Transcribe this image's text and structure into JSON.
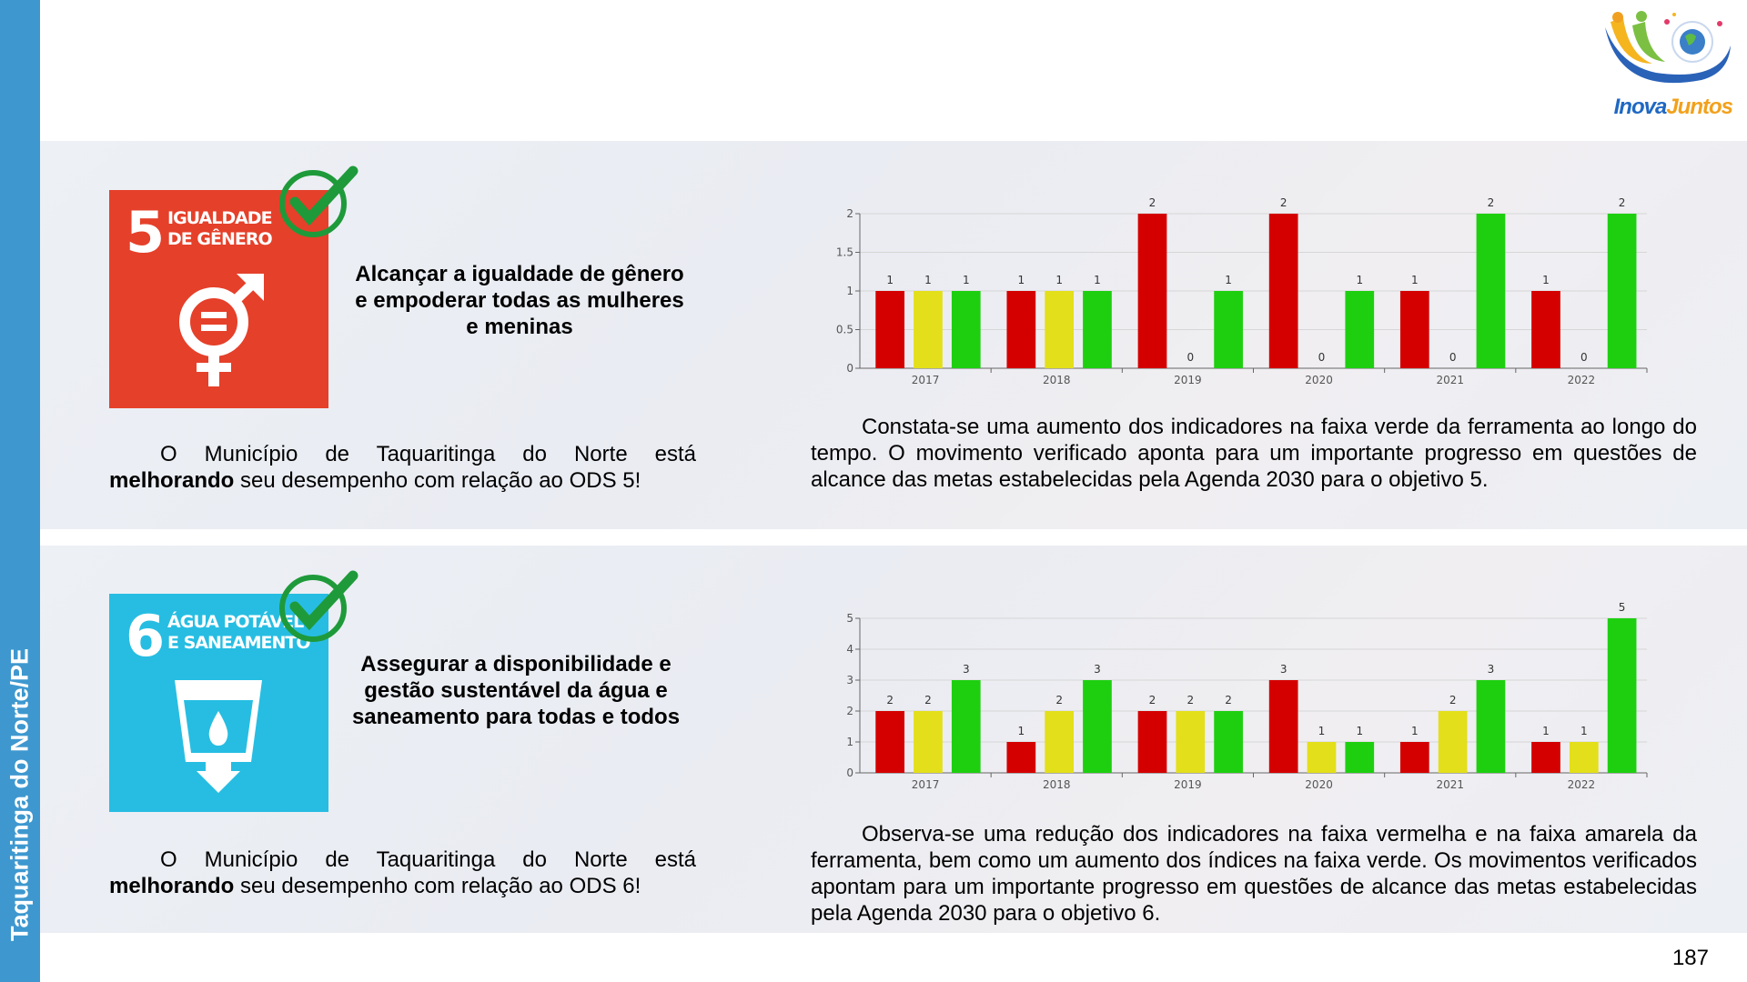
{
  "sidebar": {
    "label": "Taquaritinga do Norte/PE"
  },
  "logo": {
    "part1": "Inova",
    "part2": "Juntos"
  },
  "page_number": 187,
  "sections": [
    {
      "sdg_number": "5",
      "sdg_title_lines": [
        "IGUALDADE",
        "DE GÊNERO"
      ],
      "heading": "Alcançar a igualdade de gênero e empoderar todas as mulheres e meninas",
      "status_text": [
        "O Município de Taquaritinga do Norte está",
        "melhorando",
        "seu desempenho com relação ao ODS 5!"
      ],
      "analysis": "Constata-se uma aumento dos indicadores na faixa verde da ferramenta ao longo do tempo. O movimento verificado aponta para um importante progresso em questões de alcance das metas estabelecidas pela Agenda 2030 para o objetivo 5."
    },
    {
      "sdg_number": "6",
      "sdg_title_lines": [
        "ÁGUA POTÁVEL",
        "E SANEAMENTO"
      ],
      "heading": "Assegurar a disponibilidade e gestão sustentável da água e saneamento para todas e todos",
      "status_text": [
        "O Município de Taquaritinga do Norte está",
        "melhorando",
        "seu desempenho com relação ao ODS 6!"
      ],
      "analysis": "Observa-se uma redução dos indicadores na faixa vermelha e na faixa amarela da ferramenta, bem como um aumento dos índices na faixa verde. Os movimentos verificados apontam para um importante progresso em questões de alcance das metas estabelecidas pela Agenda 2030 para o objetivo 6."
    }
  ],
  "chart_data": [
    {
      "type": "bar",
      "categories": [
        "2017",
        "2018",
        "2019",
        "2020",
        "2021",
        "2022"
      ],
      "series": [
        {
          "color": "#d40000",
          "values": [
            1,
            1,
            2,
            2,
            1,
            1
          ]
        },
        {
          "color": "#e3df1a",
          "values": [
            1,
            1,
            0,
            0,
            0,
            0
          ]
        },
        {
          "color": "#1ecf10",
          "values": [
            1,
            1,
            1,
            1,
            2,
            2
          ]
        }
      ],
      "ylim": [
        0,
        2
      ],
      "yticks": [
        0,
        0.5,
        1,
        1.5,
        2
      ],
      "grid": true,
      "data_labels": true
    },
    {
      "type": "bar",
      "categories": [
        "2017",
        "2018",
        "2019",
        "2020",
        "2021",
        "2022"
      ],
      "series": [
        {
          "color": "#d40000",
          "values": [
            2,
            1,
            2,
            3,
            1,
            1
          ]
        },
        {
          "color": "#e3df1a",
          "values": [
            2,
            2,
            2,
            1,
            2,
            1
          ]
        },
        {
          "color": "#1ecf10",
          "values": [
            3,
            3,
            2,
            1,
            3,
            5
          ]
        }
      ],
      "ylim": [
        0,
        5
      ],
      "yticks": [
        0,
        1,
        2,
        3,
        4,
        5
      ],
      "grid": true,
      "data_labels": true
    }
  ]
}
